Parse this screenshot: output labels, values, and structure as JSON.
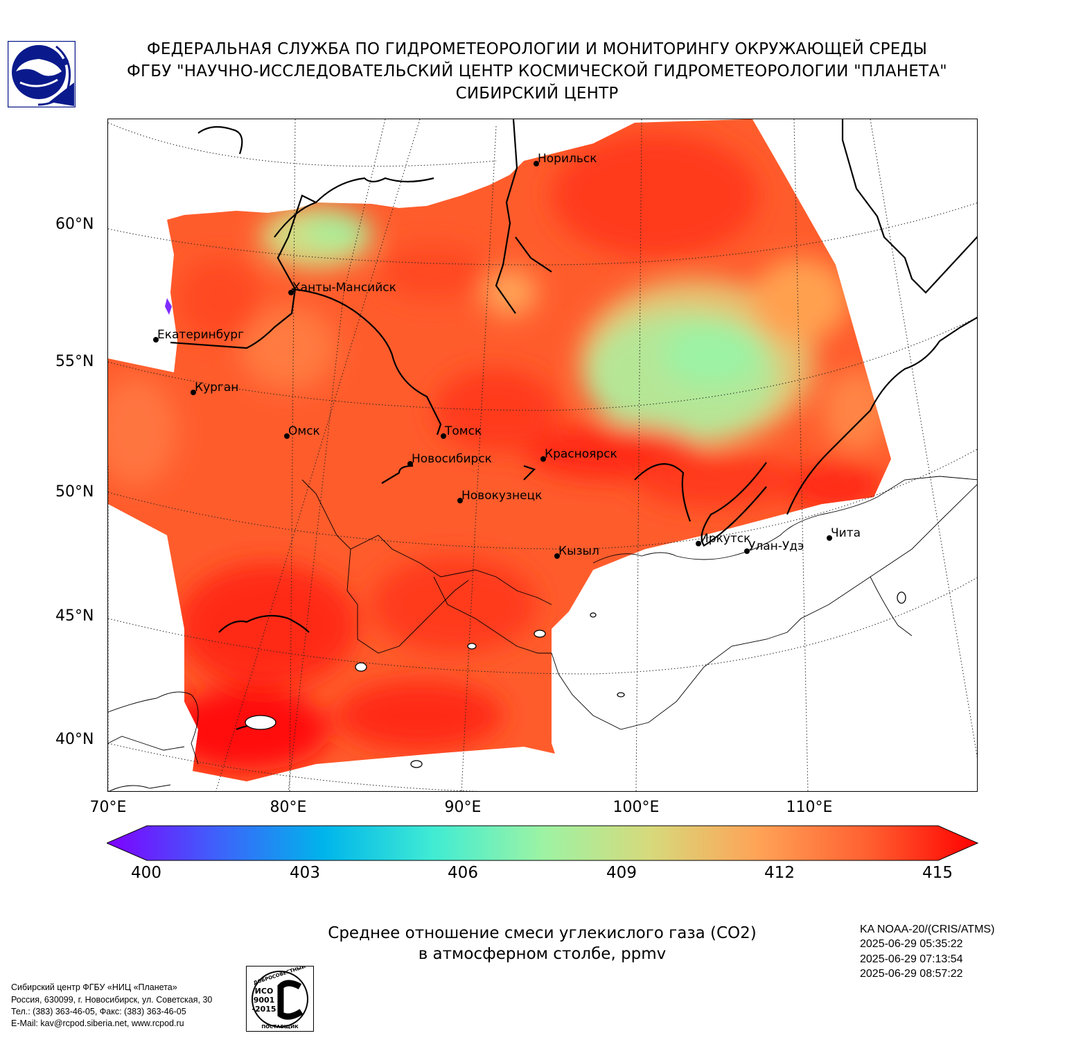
{
  "header": {
    "line1": "ФЕДЕРАЛЬНАЯ СЛУЖБА ПО ГИДРОМЕТЕОРОЛОГИИ И МОНИТОРИНГУ ОКРУЖАЮЩЕЙ СРЕДЫ",
    "line2": "ФГБУ \"НАУЧНО-ИССЛЕДОВАТЕЛЬСКИЙ ЦЕНТР КОСМИЧЕСКОЙ ГИДРОМЕТЕОРОЛОГИИ \"ПЛАНЕТА\"",
    "line3": "СИБИРСКИЙ ЦЕНТР"
  },
  "map": {
    "lat_labels": [
      "60°N",
      "55°N",
      "50°N",
      "45°N",
      "40°N"
    ],
    "lon_labels": [
      "70°E",
      "80°E",
      "90°E",
      "100°E",
      "110°E"
    ],
    "cities": [
      {
        "name": "Норильск"
      },
      {
        "name": "Ханты-Мансийск"
      },
      {
        "name": "Екатеринбург"
      },
      {
        "name": "Курган"
      },
      {
        "name": "Омск"
      },
      {
        "name": "Томск"
      },
      {
        "name": "Новосибирск"
      },
      {
        "name": "Красноярск"
      },
      {
        "name": "Новокузнецк"
      },
      {
        "name": "Кызыл"
      },
      {
        "name": "Иркутск"
      },
      {
        "name": "Улан-Удэ"
      },
      {
        "name": "Чита"
      }
    ]
  },
  "colorbar": {
    "ticks": [
      "400",
      "403",
      "406",
      "409",
      "412",
      "415"
    ],
    "min": 400,
    "max": 415,
    "colors": [
      "#7f00ff",
      "#3f60fb",
      "#00b5eb",
      "#40ecd3",
      "#9cf3a4",
      "#d7d97b",
      "#ffa256",
      "#ff5f30",
      "#ff0000"
    ]
  },
  "caption": {
    "line1": "Среднее отношение смеси углекислого газа (CO2)",
    "line2": "в атмосферном столбе, ppmv"
  },
  "satellite": {
    "name": "KA NOAA-20/(CRIS/ATMS)",
    "times": [
      "2025-06-29 05:35:22",
      "2025-06-29 07:13:54",
      "2025-06-29 08:57:22"
    ]
  },
  "footer": {
    "line1": "Сибирский центр ФГБУ «НИЦ «Планета»",
    "line2": "Россия, 630099, г. Новосибирск, ул. Советская, 30",
    "line3": "Тел.: (383) 363-46-05, Факс: (383) 363-46-05",
    "line4": "E-Mail: kav@rcpod.siberia.net, www.rcpod.ru"
  },
  "iso_stamp": {
    "top": "ДОБРОСОВЕСТНЫЙ",
    "l1": "ИСО",
    "l2": "9001",
    "l3": "-2015",
    "bottom": "ПОСТАВЩИК"
  }
}
